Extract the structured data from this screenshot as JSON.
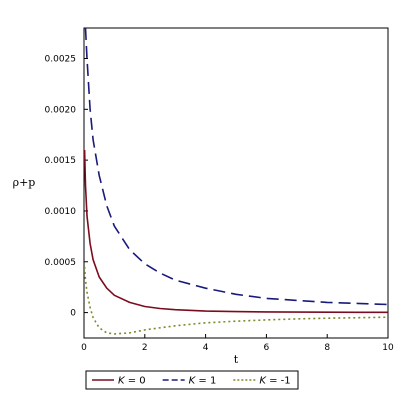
{
  "chart_data": {
    "type": "line",
    "xlabel": "t",
    "ylabel": "ρ+p",
    "xlim": [
      0,
      10
    ],
    "ylim": [
      -0.00025,
      0.0028
    ],
    "xticks": [
      0,
      2,
      4,
      6,
      8,
      10
    ],
    "xtick_labels": [
      "0",
      "2",
      "4",
      "6",
      "8",
      "10"
    ],
    "yticks": [
      0,
      0.0005,
      0.001,
      0.0015,
      0.002,
      0.0025
    ],
    "ytick_labels": [
      "0",
      "0.0005",
      "0.0010",
      "0.0015",
      "0.0020",
      "0.0025"
    ],
    "grid": false,
    "legend_position": "bottom",
    "series": [
      {
        "name": "K = 0",
        "legend_key": "K",
        "legend_value": "= 0",
        "color": "#7b0c1f",
        "style": "solid",
        "x": [
          0.02,
          0.05,
          0.1,
          0.2,
          0.3,
          0.5,
          0.75,
          1,
          1.5,
          2,
          2.5,
          3,
          4,
          5,
          6,
          7,
          8,
          9,
          10
        ],
        "y": [
          0.0016,
          0.00125,
          0.00095,
          0.00068,
          0.00052,
          0.00035,
          0.00024,
          0.00017,
          0.0001,
          6e-05,
          4e-05,
          2.8e-05,
          1.5e-05,
          1e-05,
          7e-06,
          5e-06,
          4e-06,
          3e-06,
          2.5e-06
        ]
      },
      {
        "name": "K = 1",
        "legend_key": "K",
        "legend_value": "= 1",
        "color": "#1a1a7a",
        "style": "dashed",
        "x": [
          0.05,
          0.1,
          0.2,
          0.3,
          0.5,
          0.75,
          1,
          1.5,
          2,
          2.5,
          3,
          4,
          5,
          6,
          7,
          8,
          9,
          10
        ],
        "y": [
          0.0028,
          0.0025,
          0.002,
          0.0017,
          0.00135,
          0.00105,
          0.00085,
          0.00062,
          0.00048,
          0.00039,
          0.00032,
          0.00024,
          0.00018,
          0.00014,
          0.00012,
          0.0001,
          9e-05,
          8e-05
        ]
      },
      {
        "name": "K = -1",
        "legend_key": "K",
        "legend_value": "= -1",
        "color": "#7d8a2a",
        "style": "dotted",
        "x": [
          0.02,
          0.05,
          0.1,
          0.2,
          0.3,
          0.5,
          0.75,
          1,
          1.5,
          2,
          2.5,
          3,
          4,
          5,
          6,
          7,
          8,
          9,
          10
        ],
        "y": [
          0.00045,
          0.00032,
          0.0002,
          5e-05,
          -5e-05,
          -0.00015,
          -0.0002,
          -0.00021,
          -0.0002,
          -0.00017,
          -0.00015,
          -0.00013,
          -0.0001,
          -8.5e-05,
          -7.2e-05,
          -6.2e-05,
          -5.5e-05,
          -5e-05,
          -4.5e-05
        ]
      }
    ]
  }
}
